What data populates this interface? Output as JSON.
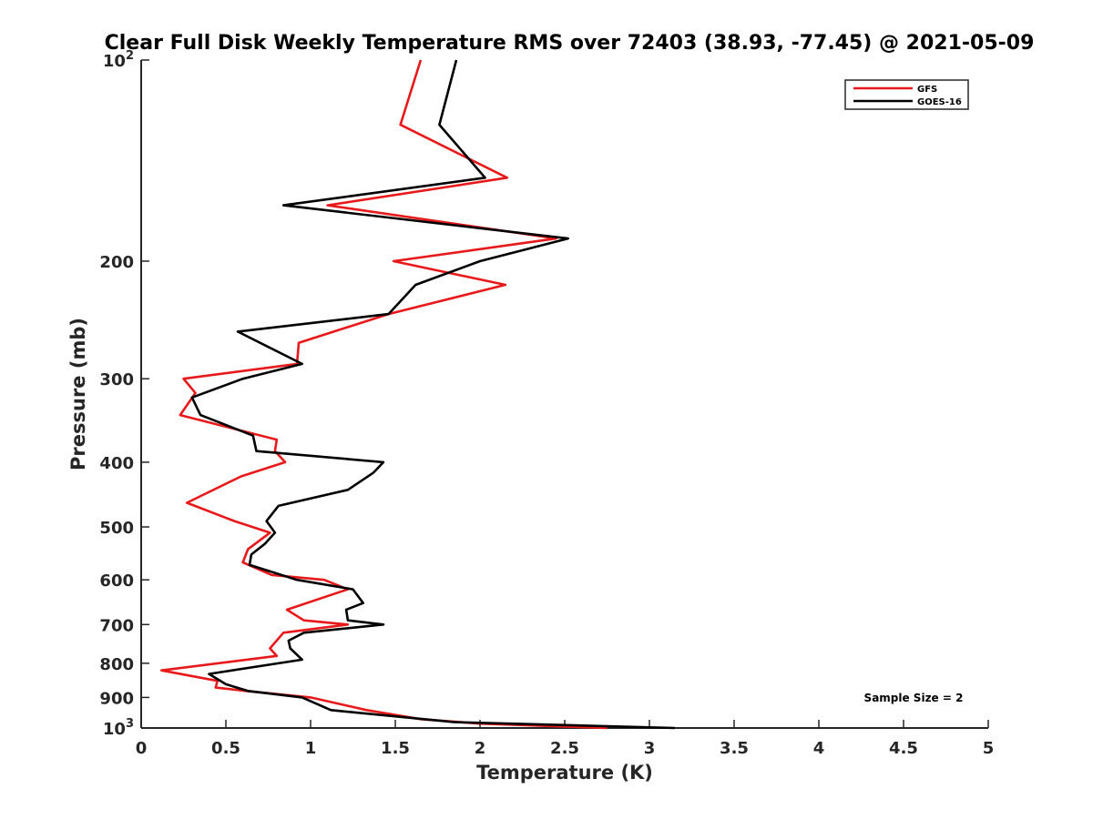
{
  "chart_data": {
    "type": "line",
    "title": "Clear Full Disk Weekly Temperature RMS over 72403 (38.93, -77.45) @ 2021-05-09",
    "xlabel": "Temperature (K)",
    "ylabel": "Pressure (mb)",
    "xlim": [
      0,
      5
    ],
    "ylim": [
      100,
      1000
    ],
    "yscale": "log",
    "y_reversed": true,
    "grid": false,
    "legend_position": "top-right",
    "x_ticks": [
      "0",
      "0.5",
      "1",
      "1.5",
      "2",
      "2.5",
      "3",
      "3.5",
      "4",
      "4.5",
      "5"
    ],
    "y_ticks": [
      {
        "value": 100,
        "base": "10",
        "exp": "2"
      },
      {
        "value": 200,
        "label": "200"
      },
      {
        "value": 300,
        "label": "300"
      },
      {
        "value": 400,
        "label": "400"
      },
      {
        "value": 500,
        "label": "500"
      },
      {
        "value": 600,
        "label": "600"
      },
      {
        "value": 700,
        "label": "700"
      },
      {
        "value": 800,
        "label": "800"
      },
      {
        "value": 900,
        "label": "900"
      },
      {
        "value": 1000,
        "base": "10",
        "exp": "3"
      }
    ],
    "annotation": "Sample Size = 2",
    "series": [
      {
        "name": "GFS",
        "color": "#e8191a",
        "points": [
          [
            1.65,
            100
          ],
          [
            1.53,
            125
          ],
          [
            2.16,
            150
          ],
          [
            1.1,
            165
          ],
          [
            2.45,
            185
          ],
          [
            1.49,
            200
          ],
          [
            2.15,
            217
          ],
          [
            1.46,
            240
          ],
          [
            0.93,
            265
          ],
          [
            0.92,
            285
          ],
          [
            0.25,
            300
          ],
          [
            0.32,
            315
          ],
          [
            0.23,
            340
          ],
          [
            0.8,
            370
          ],
          [
            0.79,
            385
          ],
          [
            0.85,
            400
          ],
          [
            0.59,
            420
          ],
          [
            0.27,
            460
          ],
          [
            0.55,
            490
          ],
          [
            0.76,
            510
          ],
          [
            0.63,
            540
          ],
          [
            0.6,
            565
          ],
          [
            0.77,
            590
          ],
          [
            1.08,
            600
          ],
          [
            1.22,
            620
          ],
          [
            0.86,
            665
          ],
          [
            0.96,
            690
          ],
          [
            1.22,
            700
          ],
          [
            0.84,
            720
          ],
          [
            0.76,
            760
          ],
          [
            0.8,
            780
          ],
          [
            0.12,
            820
          ],
          [
            0.45,
            850
          ],
          [
            0.44,
            870
          ],
          [
            0.62,
            880
          ],
          [
            1.0,
            900
          ],
          [
            1.33,
            940
          ],
          [
            1.65,
            970
          ],
          [
            2.0,
            985
          ],
          [
            2.75,
            1000
          ]
        ]
      },
      {
        "name": "GOES-16",
        "color": "#000000",
        "points": [
          [
            1.86,
            100
          ],
          [
            1.76,
            125
          ],
          [
            2.03,
            150
          ],
          [
            0.84,
            165
          ],
          [
            2.52,
            185
          ],
          [
            2.0,
            200
          ],
          [
            1.62,
            217
          ],
          [
            1.46,
            240
          ],
          [
            0.57,
            255
          ],
          [
            0.95,
            285
          ],
          [
            0.6,
            300
          ],
          [
            0.3,
            320
          ],
          [
            0.35,
            340
          ],
          [
            0.66,
            365
          ],
          [
            0.68,
            385
          ],
          [
            1.43,
            400
          ],
          [
            1.37,
            415
          ],
          [
            1.22,
            440
          ],
          [
            0.81,
            465
          ],
          [
            0.74,
            490
          ],
          [
            0.79,
            510
          ],
          [
            0.73,
            530
          ],
          [
            0.65,
            550
          ],
          [
            0.64,
            570
          ],
          [
            0.92,
            600
          ],
          [
            1.25,
            620
          ],
          [
            1.31,
            650
          ],
          [
            1.21,
            665
          ],
          [
            1.22,
            690
          ],
          [
            1.43,
            700
          ],
          [
            0.96,
            720
          ],
          [
            0.87,
            740
          ],
          [
            0.88,
            760
          ],
          [
            0.95,
            790
          ],
          [
            0.4,
            830
          ],
          [
            0.5,
            860
          ],
          [
            0.63,
            880
          ],
          [
            0.95,
            900
          ],
          [
            1.12,
            940
          ],
          [
            1.85,
            980
          ],
          [
            3.15,
            1000
          ]
        ]
      }
    ]
  }
}
